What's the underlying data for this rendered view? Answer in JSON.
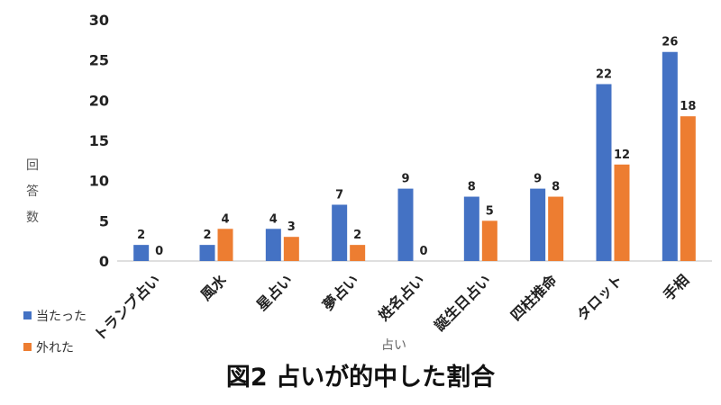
{
  "chart_data": {
    "type": "bar",
    "title": "図2 占いが的中した割合",
    "xlabel": "占い",
    "ylabel": "回答数",
    "categories": [
      "トランプ占い",
      "風水",
      "星占い",
      "夢占い",
      "姓名占い",
      "誕生日占い",
      "四柱推命",
      "タロット",
      "手相"
    ],
    "series": [
      {
        "name": "当たった",
        "color": "#4472C4",
        "values": [
          2,
          2,
          4,
          7,
          9,
          8,
          9,
          22,
          26
        ]
      },
      {
        "name": "外れた",
        "color": "#ED7D31",
        "values": [
          0,
          4,
          3,
          2,
          0,
          5,
          8,
          12,
          18
        ]
      }
    ],
    "ylim": [
      0,
      30
    ],
    "yticks": [
      0,
      5,
      10,
      15,
      20,
      25,
      30
    ],
    "grid": false,
    "legend_position": "bottom-left",
    "data_labels": true
  }
}
